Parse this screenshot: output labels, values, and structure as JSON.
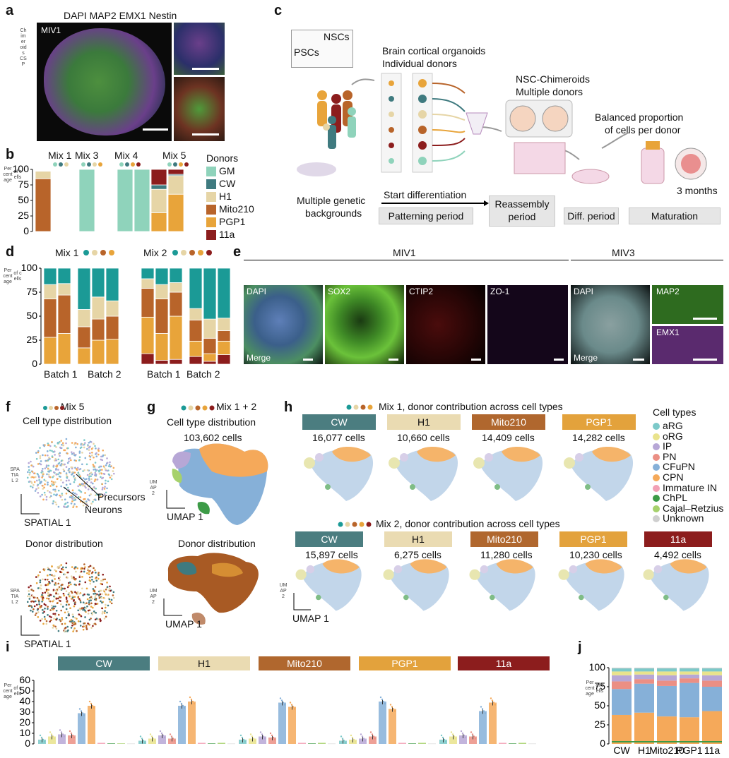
{
  "panel_letters": [
    "a",
    "b",
    "c",
    "d",
    "e",
    "f",
    "g",
    "h",
    "i",
    "j"
  ],
  "colors": {
    "GM": "#8fd3bb",
    "CW": "#3f7a7f",
    "H1": "#e6d5a6",
    "Mito210": "#b8642a",
    "PGP1": "#e8a43a",
    "11a": "#8c1d1d",
    "teal_bar": "#1b9a96",
    "aRG": "#7cc9c9",
    "oRG": "#e9e38c",
    "IP": "#b7a7d6",
    "PN": "#eb8f84",
    "CFuPN": "#86b0d8",
    "CPN": "#f5a95a",
    "Immature IN": "#f2a0b5",
    "ChPL": "#3d9b47",
    "Cajal-Retzius": "#a6d16c",
    "Unknown": "#cfcfcf"
  },
  "a": {
    "title": "DAPI MAP2 EMX1 Nestin",
    "inset_label": "MIV1",
    "side_label": "Chimeroids CSP"
  },
  "b": {
    "ylabel": "Percentage",
    "ylabel2": "of cells",
    "group_labels": [
      "Mix 1",
      "Mix 3",
      "Mix 4",
      "Mix 5"
    ],
    "legend_title": "Donors",
    "legend": [
      "GM",
      "CW",
      "H1",
      "Mito210",
      "PGP1",
      "11a"
    ]
  },
  "c": {
    "psc_label": "PSCs",
    "nsc_label": "NSCs",
    "organoid_title_1": "Brain cortical organoids",
    "organoid_title_2": "Individual donors",
    "chimeroid_1": "NSC-Chimeroids",
    "chimeroid_2": "Multiple donors",
    "balanced_1": "Balanced proportion",
    "balanced_2": "of cells per donor",
    "months": "3 months",
    "genetic_1": "Multiple genetic",
    "genetic_2": "backgrounds",
    "start": "Start differentiation",
    "patterning": "Patterning period",
    "reassembly_1": "Reassembly",
    "reassembly_2": "period",
    "diff": "Diff. period",
    "maturation": "Maturation"
  },
  "d": {
    "ylabel": "Percentage",
    "ylabel2": "of cells",
    "mix1": "Mix 1",
    "mix2": "Mix 2",
    "batch_labels": [
      "Batch 1",
      "Batch 2",
      "Batch 1",
      "Batch 2"
    ]
  },
  "e": {
    "miv1": "MIV1",
    "miv3": "MIV3",
    "channels": [
      "DAPI",
      "SOX2",
      "CTIP2",
      "ZO-1"
    ],
    "merge": "Merge",
    "miv3_dapi": "DAPI",
    "miv3_merge": "Merge",
    "map2": "MAP2",
    "emx1": "EMX1"
  },
  "f": {
    "mix": "Mix 5",
    "title1": "Cell type distribution",
    "title2": "Donor distribution",
    "precursors": "Precursors",
    "neurons": "Neurons",
    "xaxis": "SPATIAL 1",
    "yaxis": "SPATIAL 2"
  },
  "g": {
    "mix": "Mix 1 + 2",
    "title1": "Cell type distribution",
    "cells": "103,602 cells",
    "title2": "Donor distribution",
    "xaxis": "UMAP 1",
    "yaxis": "UMAP 2"
  },
  "h": {
    "title1": "Mix 1, donor contribution across cell types",
    "title2": "Mix 2, donor contribution across cell types",
    "row1": [
      {
        "donor": "CW",
        "cells": "16,077 cells"
      },
      {
        "donor": "H1",
        "cells": "10,660 cells"
      },
      {
        "donor": "Mito210",
        "cells": "14,409 cells"
      },
      {
        "donor": "PGP1",
        "cells": "14,282 cells"
      }
    ],
    "row2": [
      {
        "donor": "CW",
        "cells": "15,897 cells"
      },
      {
        "donor": "H1",
        "cells": "6,275 cells"
      },
      {
        "donor": "Mito210",
        "cells": "11,280 cells"
      },
      {
        "donor": "PGP1",
        "cells": "10,230 cells"
      },
      {
        "donor": "11a",
        "cells": "4,492 cells"
      }
    ],
    "legend_title": "Cell types",
    "legend": [
      "aRG",
      "oRG",
      "IP",
      "PN",
      "CFuPN",
      "CPN",
      "Immature IN",
      "ChPL",
      "Cajal–Retzius",
      "Unknown"
    ],
    "xaxis": "UMAP 1",
    "yaxis": "UMAP 2"
  },
  "i": {
    "ylabel": "Percentage",
    "ylabel2": "of cells",
    "donors": [
      "CW",
      "H1",
      "Mito210",
      "PGP1",
      "11a"
    ]
  },
  "j": {
    "ylabel": "Percentage",
    "ylabel2": "of cells",
    "xticks": [
      "CW",
      "H1",
      "Mito210",
      "PGP1",
      "11a"
    ]
  },
  "chart_data": [
    {
      "id": "b",
      "type": "bar",
      "stacked": true,
      "ylim": [
        0,
        100
      ],
      "yticks": [
        0,
        25,
        50,
        75,
        100
      ],
      "groups": [
        "Mix 1",
        "Mix 3",
        "Mix 4",
        "Mix 5"
      ],
      "series_order": [
        "Mito210",
        "PGP1",
        "H1",
        "CW",
        "GM",
        "11a"
      ],
      "bars": [
        {
          "group": "Mix 1",
          "Mito210": 85,
          "PGP1": 0,
          "H1": 12,
          "CW": 0,
          "GM": 0,
          "11a": 0
        },
        {
          "group": "Mix 3",
          "Mito210": 0,
          "PGP1": 0,
          "H1": 0,
          "CW": 0,
          "GM": 100,
          "11a": 0
        },
        {
          "group": "Mix 4",
          "Mito210": 0,
          "PGP1": 0,
          "H1": 0,
          "CW": 0,
          "GM": 100,
          "11a": 0
        },
        {
          "group": "Mix 4",
          "Mito210": 0,
          "PGP1": 0,
          "H1": 0,
          "CW": 0,
          "GM": 100,
          "11a": 0
        },
        {
          "group": "Mix 5",
          "Mito210": 0,
          "PGP1": 30,
          "H1": 38,
          "CW": 7,
          "GM": 0,
          "11a": 25
        },
        {
          "group": "Mix 5",
          "Mito210": 0,
          "PGP1": 60,
          "H1": 30,
          "CW": 2,
          "GM": 0,
          "11a": 8
        }
      ]
    },
    {
      "id": "d",
      "type": "bar",
      "stacked": true,
      "ylim": [
        0,
        100
      ],
      "yticks": [
        0,
        25,
        50,
        75,
        100
      ],
      "series_order": [
        "11a",
        "PGP1",
        "Mito210",
        "H1",
        "teal_bar"
      ],
      "bars": [
        {
          "group": "Mix 1 Batch 1",
          "11a": 0,
          "PGP1": 28,
          "Mito210": 40,
          "H1": 15,
          "teal_bar": 17
        },
        {
          "group": "Mix 1 Batch 1",
          "11a": 0,
          "PGP1": 32,
          "Mito210": 40,
          "H1": 12,
          "teal_bar": 16
        },
        {
          "group": "Mix 1 Batch 2",
          "11a": 0,
          "PGP1": 17,
          "Mito210": 22,
          "H1": 18,
          "teal_bar": 43
        },
        {
          "group": "Mix 1 Batch 2",
          "11a": 0,
          "PGP1": 25,
          "Mito210": 22,
          "H1": 23,
          "teal_bar": 30
        },
        {
          "group": "Mix 1 Batch 2",
          "11a": 0,
          "PGP1": 26,
          "Mito210": 24,
          "H1": 16,
          "teal_bar": 34
        },
        {
          "group": "Mix 2 Batch 1",
          "11a": 11,
          "PGP1": 38,
          "Mito210": 30,
          "H1": 10,
          "teal_bar": 11
        },
        {
          "group": "Mix 2 Batch 1",
          "11a": 4,
          "PGP1": 28,
          "Mito210": 36,
          "H1": 15,
          "teal_bar": 17
        },
        {
          "group": "Mix 2 Batch 1",
          "11a": 5,
          "PGP1": 45,
          "Mito210": 25,
          "H1": 10,
          "teal_bar": 15
        },
        {
          "group": "Mix 2 Batch 2",
          "11a": 8,
          "PGP1": 16,
          "Mito210": 22,
          "H1": 12,
          "teal_bar": 42
        },
        {
          "group": "Mix 2 Batch 2",
          "11a": 3,
          "PGP1": 8,
          "Mito210": 16,
          "H1": 20,
          "teal_bar": 53
        },
        {
          "group": "Mix 2 Batch 2",
          "11a": 10,
          "PGP1": 14,
          "Mito210": 11,
          "H1": 13,
          "teal_bar": 52
        }
      ]
    },
    {
      "id": "i",
      "type": "bar",
      "ylim": [
        0,
        60
      ],
      "yticks": [
        0,
        10,
        20,
        30,
        40,
        50,
        60
      ],
      "categories": [
        "aRG",
        "oRG",
        "IP",
        "PN",
        "CFuPN",
        "CPN",
        "Immature IN",
        "ChPL",
        "Cajal-Retzius",
        "Unknown"
      ],
      "series": [
        {
          "name": "CW",
          "values": [
            4,
            7,
            9,
            8,
            29,
            36,
            1,
            0.5,
            0.5,
            0.3
          ]
        },
        {
          "name": "H1",
          "values": [
            3,
            5,
            8,
            5,
            36,
            40,
            1,
            0.5,
            1,
            0.3
          ]
        },
        {
          "name": "Mito210",
          "values": [
            4,
            5,
            7,
            6,
            39,
            35,
            1,
            0.5,
            1,
            0.3
          ]
        },
        {
          "name": "PGP1",
          "values": [
            3,
            4,
            5,
            7,
            40,
            33,
            1,
            0.5,
            1,
            0.3
          ]
        },
        {
          "name": "11a",
          "values": [
            4,
            7,
            8,
            7,
            31,
            39,
            1,
            0.5,
            1,
            0.3
          ]
        }
      ]
    },
    {
      "id": "j",
      "type": "bar",
      "stacked": true,
      "ylim": [
        0,
        100
      ],
      "yticks": [
        0,
        25,
        50,
        75,
        100
      ],
      "categories": [
        "CW",
        "H1",
        "Mito210",
        "PGP1",
        "11a"
      ],
      "series_order": [
        "CPN",
        "CFuPN",
        "PN",
        "IP",
        "oRG",
        "aRG",
        "Unknown"
      ],
      "bars": [
        {
          "CPN": 38,
          "CFuPN": 34,
          "PN": 10,
          "IP": 8,
          "oRG": 5,
          "aRG": 4,
          "Unknown": 1
        },
        {
          "CPN": 41,
          "CFuPN": 38,
          "PN": 6,
          "IP": 6,
          "oRG": 4,
          "aRG": 4,
          "Unknown": 1
        },
        {
          "CPN": 36,
          "CFuPN": 40,
          "PN": 7,
          "IP": 7,
          "oRG": 5,
          "aRG": 4,
          "Unknown": 1
        },
        {
          "CPN": 35,
          "CFuPN": 45,
          "PN": 6,
          "IP": 5,
          "oRG": 4,
          "aRG": 4,
          "Unknown": 1
        },
        {
          "CPN": 43,
          "CFuPN": 32,
          "PN": 8,
          "IP": 7,
          "oRG": 5,
          "aRG": 4,
          "Unknown": 1
        }
      ]
    }
  ]
}
